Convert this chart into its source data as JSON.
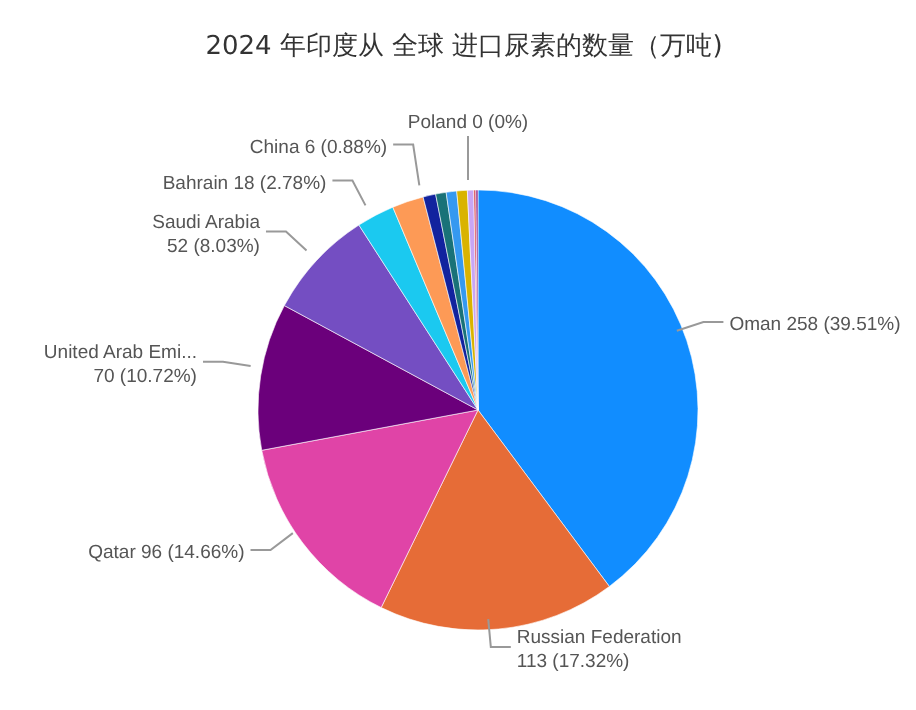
{
  "chart_data": {
    "type": "pie",
    "title": "2024 年印度从 全球 进口尿素的数量（万吨)",
    "categories": [
      "Oman",
      "Russian Federation",
      "Qatar",
      "United Arab Emi...",
      "Saudi Arabia",
      "Bahrain",
      null,
      "China",
      null,
      null,
      null,
      null,
      null,
      null,
      "Poland"
    ],
    "values": [
      258,
      113,
      96,
      70,
      52,
      18,
      15,
      6,
      5,
      5,
      5,
      3,
      1,
      1,
      0
    ],
    "value_labels": [
      "258 (39.51%)",
      "113 (17.32%)",
      "96 (14.66%)",
      "70 (10.72%)",
      "52 (8.03%)",
      "18 (2.78%)",
      null,
      "6 (0.88%)",
      null,
      null,
      null,
      null,
      null,
      null,
      "0 (0%)"
    ],
    "colors": [
      "#118dff",
      "#e66c37",
      "#e044a7",
      "#6b007b",
      "#744ec2",
      "#1bc9f0",
      "#fd9a56",
      "#12239e",
      "#197278",
      "#3599f0",
      "#d9b300",
      "#c8a6f5",
      "#d64550",
      "#8f2e8f",
      "#7b3f8a"
    ]
  }
}
